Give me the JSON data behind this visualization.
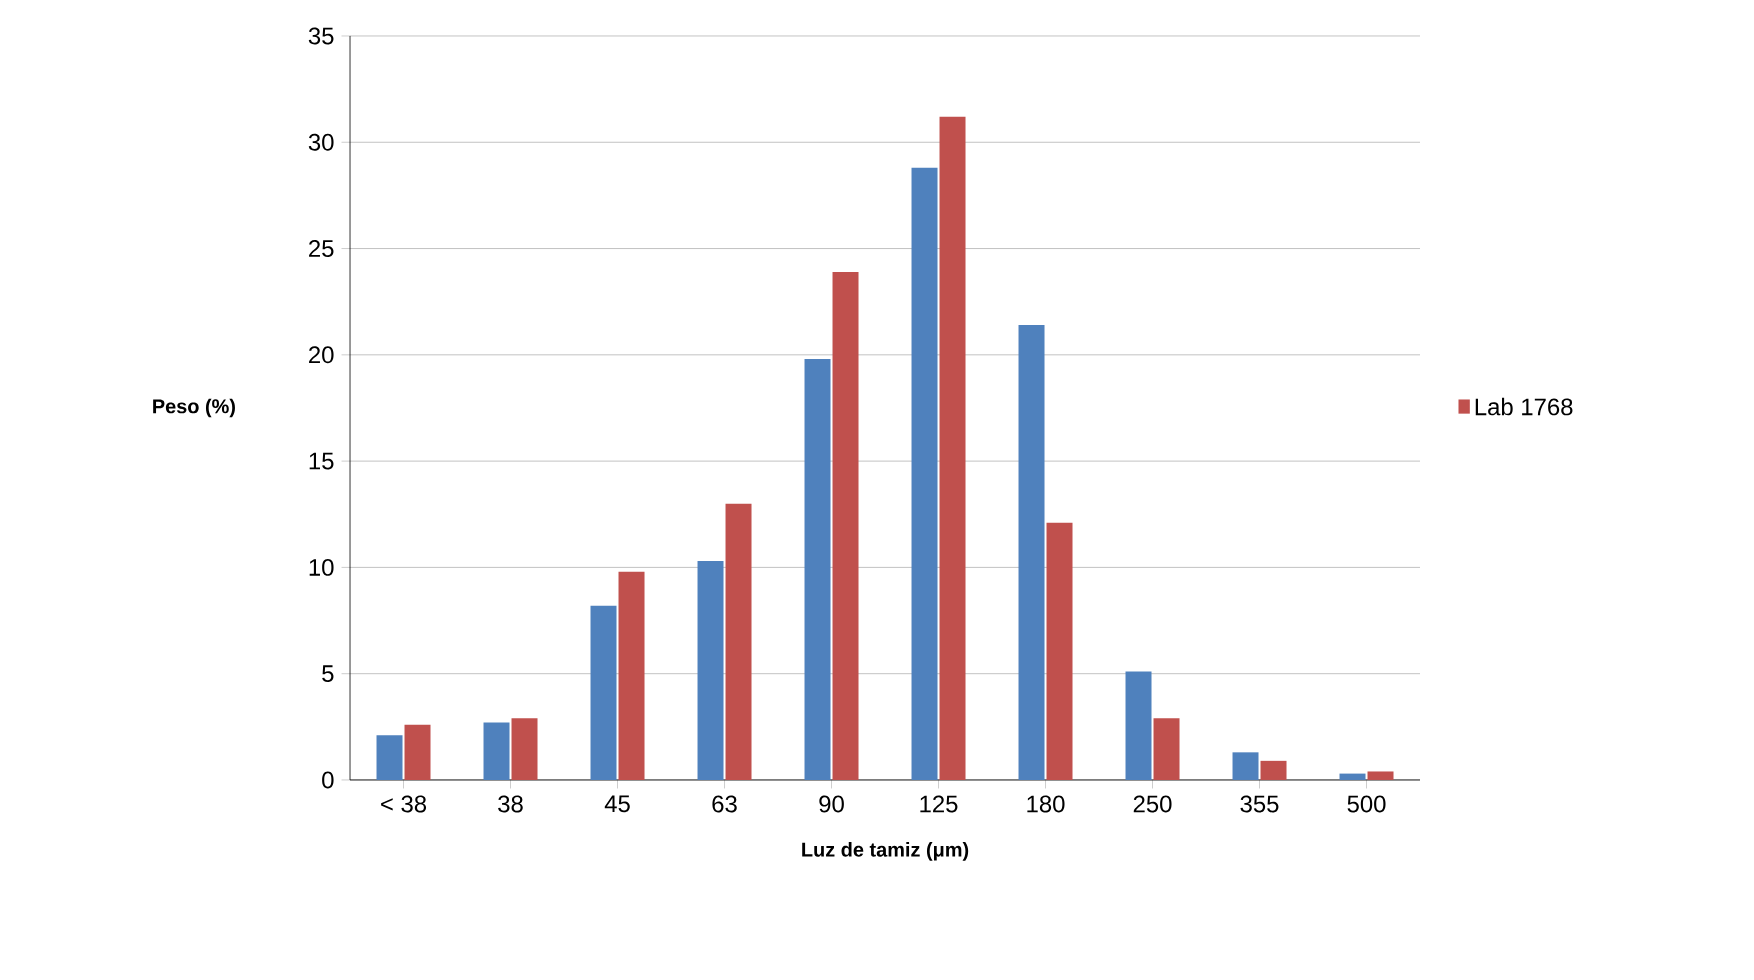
{
  "chart_data": {
    "type": "bar",
    "xlabel": "Luz de tamiz (μm)",
    "ylabel": "Peso (%)",
    "categories": [
      "< 38",
      "38",
      "45",
      "63",
      "90",
      "125",
      "180",
      "250",
      "355",
      "500"
    ],
    "series": [
      {
        "color": "#4f81bd",
        "values": [
          2.1,
          2.7,
          8.2,
          10.3,
          19.8,
          28.8,
          21.4,
          5.1,
          1.3,
          0.3
        ]
      },
      {
        "name": "Lab 1768",
        "color": "#c0504d",
        "values": [
          2.6,
          2.9,
          9.8,
          13.0,
          23.9,
          31.2,
          12.1,
          2.9,
          0.9,
          0.4
        ]
      }
    ],
    "ylim": [
      0,
      35
    ],
    "yticks": [
      0,
      5,
      10,
      15,
      20,
      25,
      30,
      35
    ],
    "grid": "y",
    "legend": "right"
  }
}
